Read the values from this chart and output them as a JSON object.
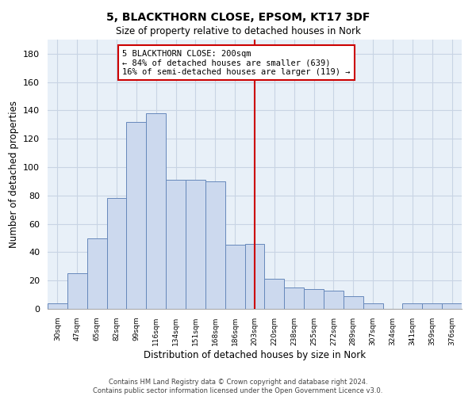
{
  "title": "5, BLACKTHORN CLOSE, EPSOM, KT17 3DF",
  "subtitle": "Size of property relative to detached houses in Nork",
  "xlabel": "Distribution of detached houses by size in Nork",
  "ylabel": "Number of detached properties",
  "categories": [
    "30sqm",
    "47sqm",
    "65sqm",
    "82sqm",
    "99sqm",
    "116sqm",
    "134sqm",
    "151sqm",
    "168sqm",
    "186sqm",
    "203sqm",
    "220sqm",
    "238sqm",
    "255sqm",
    "272sqm",
    "289sqm",
    "307sqm",
    "324sqm",
    "341sqm",
    "359sqm",
    "376sqm"
  ],
  "values": [
    4,
    25,
    50,
    78,
    132,
    138,
    91,
    91,
    90,
    45,
    46,
    21,
    15,
    14,
    13,
    9,
    4,
    0,
    4,
    4,
    4
  ],
  "bar_color": "#ccd9ee",
  "bar_edge_color": "#6688bb",
  "marker_index": 10,
  "marker_label": "5 BLACKTHORN CLOSE: 200sqm",
  "annotation_line1": "← 84% of detached houses are smaller (639)",
  "annotation_line2": "16% of semi-detached houses are larger (119) →",
  "vline_color": "#cc0000",
  "ylim": [
    0,
    190
  ],
  "yticks": [
    0,
    20,
    40,
    60,
    80,
    100,
    120,
    140,
    160,
    180
  ],
  "footer_line1": "Contains HM Land Registry data © Crown copyright and database right 2024.",
  "footer_line2": "Contains public sector information licensed under the Open Government Licence v3.0.",
  "background_color": "#ffffff",
  "plot_bg_color": "#e8f0f8",
  "grid_color": "#c8d4e4"
}
